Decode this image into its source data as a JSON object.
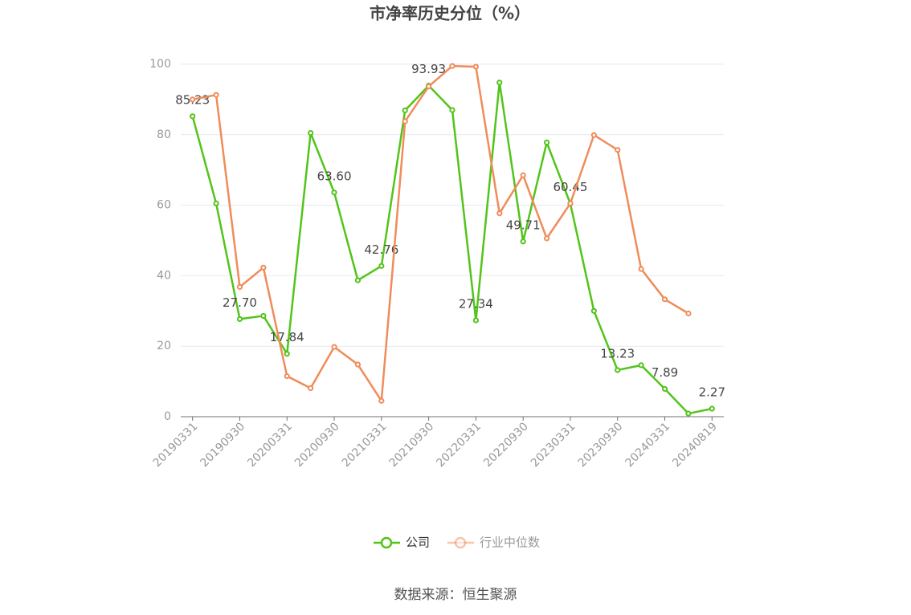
{
  "chart_data": {
    "type": "line",
    "title": "市净率历史分位（%）",
    "source": "数据来源：恒生聚源",
    "categories": [
      "20190331",
      null,
      "20190930",
      null,
      "20200331",
      null,
      "20200930",
      null,
      "20210331",
      null,
      "20210930",
      null,
      "20220331",
      null,
      "20220930",
      null,
      "20230331",
      null,
      "20230930",
      null,
      "20240331",
      null,
      "20240819"
    ],
    "series": [
      {
        "name": "公司",
        "color": "#52c41a",
        "values": [
          85.23,
          60.5,
          27.7,
          28.6,
          17.84,
          80.5,
          63.6,
          38.7,
          42.76,
          86.9,
          93.93,
          87,
          27.34,
          94.8,
          49.71,
          77.8,
          60.45,
          30,
          13.23,
          14.6,
          7.89,
          0.9,
          2.27
        ],
        "value_labels": [
          "85.23",
          null,
          "27.70",
          null,
          "17.84",
          null,
          "63.60",
          null,
          "42.76",
          null,
          "93.93",
          null,
          "27.34",
          null,
          "49.71",
          null,
          "60.45",
          null,
          "13.23",
          null,
          "7.89",
          null,
          "2.27"
        ]
      },
      {
        "name": "行业中位数",
        "color": "#f08c5a",
        "values": [
          90,
          91.3,
          36.8,
          42.3,
          11.5,
          8.1,
          19.8,
          14.8,
          4.5,
          83.8,
          93.7,
          99.5,
          99.3,
          57.7,
          68.5,
          50.6,
          60.5,
          79.9,
          75.7,
          41.9,
          33.3,
          29.3,
          null
        ]
      }
    ],
    "ylim": [
      0,
      100
    ],
    "yticks": [
      0,
      20,
      40,
      60,
      80,
      100
    ],
    "grid": true,
    "legend": "bottom"
  }
}
